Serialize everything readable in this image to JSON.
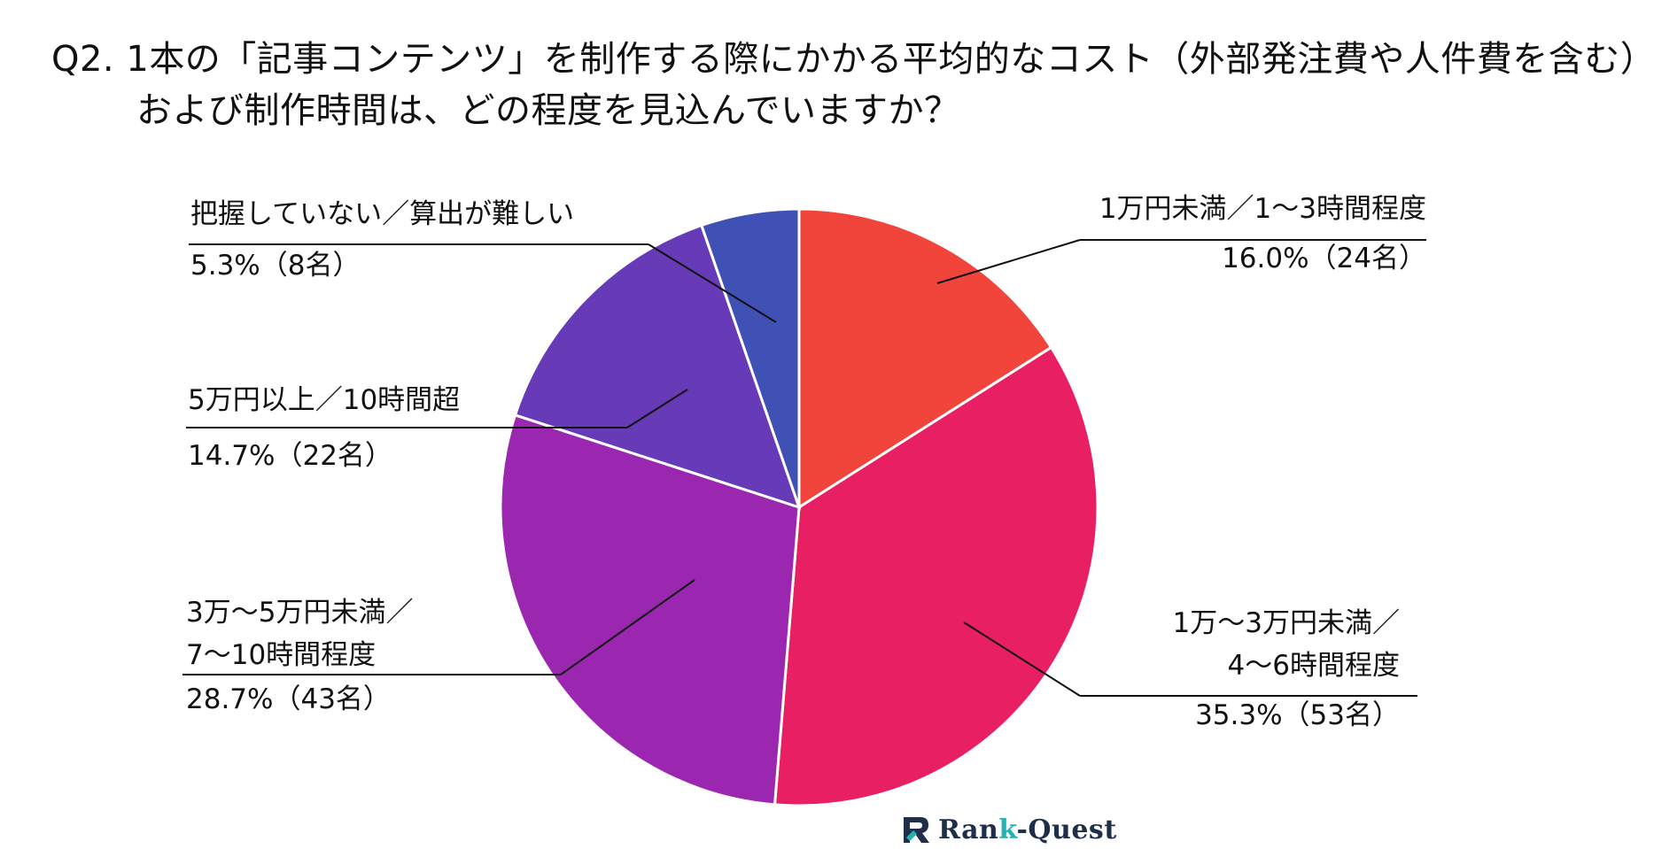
{
  "title": {
    "line1": "Q2. 1本の「記事コンテンツ」を制作する際にかかる平均的なコスト（外部発注費や人件費を含む）",
    "line2": "および制作時間は、どの程度を見込んでいますか？"
  },
  "chart_data": {
    "type": "pie",
    "start_angle_deg": 0,
    "direction": "clockwise",
    "slices": [
      {
        "label_lines": [
          "1万円未満／1～3時間程度"
        ],
        "percent_text": "16.0%（24名）",
        "value": 16.0,
        "count": 24,
        "color": "#f1443a"
      },
      {
        "label_lines": [
          "1万～3万円未満／",
          "4～6時間程度"
        ],
        "percent_text": "35.3%（53名）",
        "value": 35.3,
        "count": 53,
        "color": "#e91f63"
      },
      {
        "label_lines": [
          "3万～5万円未満／",
          "7～10時間程度"
        ],
        "percent_text": "28.7%（43名）",
        "value": 28.7,
        "count": 43,
        "color": "#9b27b0"
      },
      {
        "label_lines": [
          "5万円以上／10時間超"
        ],
        "percent_text": "14.7%（22名）",
        "value": 14.7,
        "count": 22,
        "color": "#673ab7"
      },
      {
        "label_lines": [
          "把握していない／算出が難しい"
        ],
        "percent_text": "5.3%（8名）",
        "value": 5.3,
        "count": 8,
        "color": "#3f51b5"
      }
    ]
  },
  "brand": {
    "prefix": "Ran",
    "accent": "k",
    "suffix": "-Quest",
    "logo_icon": "rank-quest-logo-icon"
  }
}
